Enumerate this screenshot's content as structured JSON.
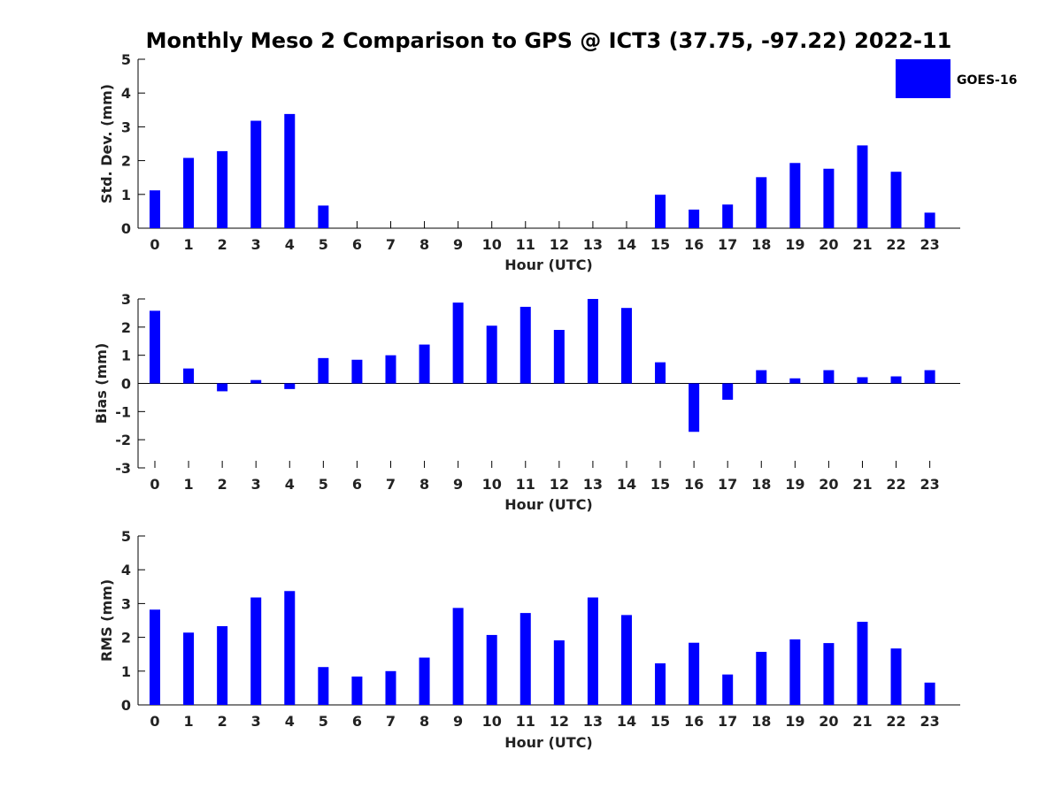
{
  "title": "Monthly Meso 2 Comparison to GPS @ ICT3 (37.75, -97.22) 2022-11",
  "legend": {
    "label": "GOES-16",
    "color": "#0000ff",
    "placement": "top-right"
  },
  "chart_data": [
    {
      "type": "bar",
      "name": "std-dev",
      "xlabel": "Hour (UTC)",
      "ylabel": "Std. Dev. (mm)",
      "ylim": [
        0,
        5
      ],
      "yticks": [
        "0",
        "1",
        "2",
        "3",
        "4",
        "5"
      ],
      "categories": [
        "0",
        "1",
        "2",
        "3",
        "4",
        "5",
        "6",
        "7",
        "8",
        "9",
        "10",
        "11",
        "12",
        "13",
        "14",
        "15",
        "16",
        "17",
        "18",
        "19",
        "20",
        "21",
        "22",
        "23"
      ],
      "values": [
        1.12,
        2.08,
        2.28,
        3.18,
        3.38,
        0.67,
        null,
        null,
        null,
        null,
        null,
        null,
        null,
        null,
        null,
        0.99,
        0.55,
        0.7,
        1.51,
        1.93,
        1.76,
        2.45,
        1.67,
        0.46
      ],
      "color": "#0000ff"
    },
    {
      "type": "bar",
      "name": "bias",
      "xlabel": "Hour (UTC)",
      "ylabel": "Bias (mm)",
      "ylim": [
        -3,
        3
      ],
      "yticks": [
        "-3",
        "-2",
        "-1",
        "0",
        "1",
        "2",
        "3"
      ],
      "categories": [
        "0",
        "1",
        "2",
        "3",
        "4",
        "5",
        "6",
        "7",
        "8",
        "9",
        "10",
        "11",
        "12",
        "13",
        "14",
        "15",
        "16",
        "17",
        "18",
        "19",
        "20",
        "21",
        "22",
        "23"
      ],
      "values": [
        2.58,
        0.53,
        -0.28,
        0.12,
        -0.2,
        0.9,
        0.84,
        1.0,
        1.38,
        2.87,
        2.05,
        2.72,
        1.9,
        3.0,
        2.68,
        0.75,
        -1.72,
        -0.58,
        0.47,
        0.18,
        0.47,
        0.22,
        0.25,
        0.47
      ],
      "color": "#0000ff"
    },
    {
      "type": "bar",
      "name": "rms",
      "xlabel": "Hour (UTC)",
      "ylabel": "RMS (mm)",
      "ylim": [
        0,
        5
      ],
      "yticks": [
        "0",
        "1",
        "2",
        "3",
        "4",
        "5"
      ],
      "categories": [
        "0",
        "1",
        "2",
        "3",
        "4",
        "5",
        "6",
        "7",
        "8",
        "9",
        "10",
        "11",
        "12",
        "13",
        "14",
        "15",
        "16",
        "17",
        "18",
        "19",
        "20",
        "21",
        "22",
        "23"
      ],
      "values": [
        2.82,
        2.14,
        2.33,
        3.18,
        3.37,
        1.12,
        0.84,
        1.0,
        1.4,
        2.87,
        2.07,
        2.72,
        1.91,
        3.18,
        2.66,
        1.23,
        1.84,
        0.9,
        1.57,
        1.94,
        1.83,
        2.46,
        1.67,
        0.66
      ],
      "color": "#0000ff"
    }
  ]
}
